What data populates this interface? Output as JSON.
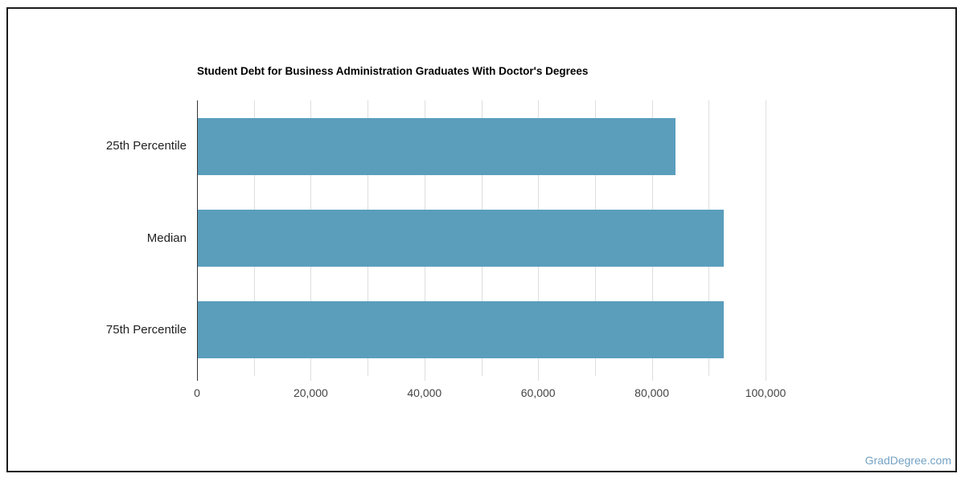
{
  "page": {
    "background": "#ffffff",
    "frame_border_color": "#1a1a1a"
  },
  "chart_data": {
    "type": "bar",
    "orientation": "horizontal",
    "title": "Student Debt for Business Administration Graduates With Doctor's Degrees",
    "categories": [
      "25th Percentile",
      "Median",
      "75th Percentile"
    ],
    "values": [
      84000,
      92500,
      92500
    ],
    "xlabel": "",
    "ylabel": "",
    "xlim": [
      0,
      100000
    ],
    "grid_step": 10000,
    "tick_step": 20000,
    "x_tick_labels": [
      "0",
      "20,000",
      "40,000",
      "60,000",
      "80,000",
      "100,000"
    ],
    "grid": true,
    "legend": "none",
    "bar_color": "#5A9EBC",
    "gridline_color": "#dedede",
    "axis_line_color": "#333333",
    "tick_label_color": "#444444",
    "category_label_color": "#222222",
    "title_color": "#000000"
  },
  "watermark": {
    "text": "GradDegree.com",
    "color": "#73A2C3"
  }
}
